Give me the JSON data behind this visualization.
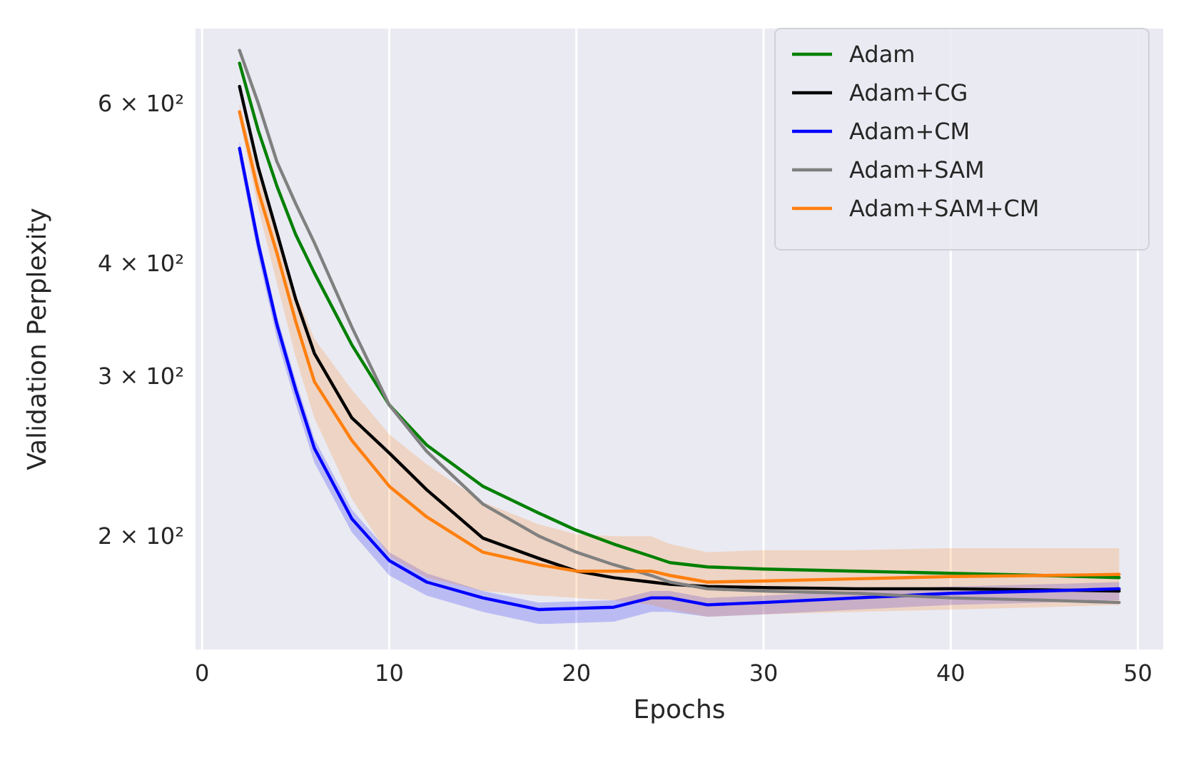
{
  "chart_data": {
    "type": "line",
    "xlabel": "Epochs",
    "ylabel": "Validation Perplexity",
    "log": true,
    "grid": "x",
    "legend": "top right",
    "x": [
      2,
      3,
      4,
      5,
      6,
      8,
      10,
      12,
      15,
      18,
      20,
      22,
      24,
      25,
      27,
      30,
      35,
      40,
      45,
      49
    ],
    "xlim": [
      -0.35,
      51.35
    ],
    "xticks": [
      0,
      10,
      20,
      30,
      40,
      50
    ],
    "ylim": [
      150,
      725
    ],
    "yticks": [
      {
        "value": 200,
        "label": "2 × 10²"
      },
      {
        "value": 300,
        "label": "3 × 10²"
      },
      {
        "value": 400,
        "label": "4 × 10²"
      },
      {
        "value": 600,
        "label": "6 × 10²"
      }
    ],
    "series": [
      {
        "name": "Adam",
        "color": "#008000",
        "values": [
          664,
          560,
          486,
          430,
          390,
          325,
          279,
          252,
          227,
          212,
          203,
          196,
          190,
          187,
          185,
          184,
          183,
          182,
          181,
          180
        ]
      },
      {
        "name": "Adam+CG",
        "color": "#000000",
        "values": [
          626,
          510,
          432,
          365,
          318,
          270,
          247,
          225,
          199,
          189,
          183,
          180,
          178,
          177,
          176,
          175.5,
          175,
          175,
          174.5,
          174
        ]
      },
      {
        "name": "Adam+CM",
        "color": "#0000ff",
        "values": [
          535,
          420,
          342,
          290,
          250,
          209,
          188,
          178,
          171,
          166,
          166.5,
          167,
          171,
          171,
          168,
          169,
          171,
          173,
          174,
          175
        ],
        "lower": [
          520,
          407,
          330,
          280,
          241,
          202,
          181,
          172,
          165,
          160,
          160.5,
          161,
          165,
          165,
          163,
          164,
          166,
          168,
          169,
          170
        ],
        "upper": [
          545,
          430,
          350,
          297,
          256,
          214,
          192,
          182,
          174,
          169,
          169.5,
          170,
          174,
          174,
          171,
          172,
          174,
          176,
          177,
          178
        ]
      },
      {
        "name": "Adam+SAM",
        "color": "#808080",
        "values": [
          686,
          600,
          517,
          465,
          421,
          340,
          279,
          248,
          217,
          200,
          192,
          186,
          181,
          178,
          175,
          174,
          173,
          171,
          170,
          169
        ]
      },
      {
        "name": "Adam+SAM+CM",
        "color": "#ff7f0e",
        "values": [
          587,
          480,
          410,
          345,
          296,
          255,
          227,
          210,
          192,
          186,
          183,
          183,
          183,
          181,
          178,
          178.5,
          179.5,
          180.5,
          181,
          181.5
        ],
        "lower": [
          575,
          460,
          380,
          315,
          270,
          220,
          190,
          180,
          174,
          172,
          171,
          170,
          168,
          166,
          163,
          164,
          165,
          166,
          167,
          168
        ],
        "upper": [
          600,
          500,
          430,
          370,
          330,
          290,
          259,
          240,
          218,
          206,
          201,
          200,
          200,
          196,
          192,
          193,
          193,
          194,
          194,
          194
        ]
      }
    ]
  }
}
